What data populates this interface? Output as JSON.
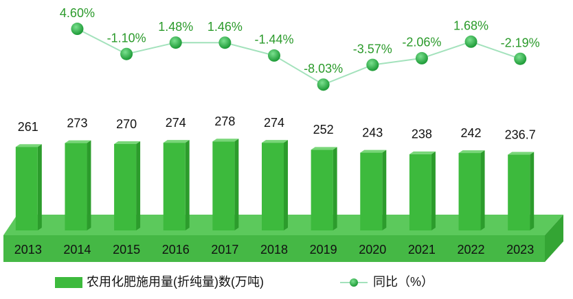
{
  "chart_data": {
    "type": "bar",
    "categories": [
      "2013",
      "2014",
      "2015",
      "2016",
      "2017",
      "2018",
      "2019",
      "2020",
      "2021",
      "2022",
      "2023"
    ],
    "series": [
      {
        "name": "农用化肥施用量(折纯量)数(万吨)",
        "type": "bar",
        "color": "#3dba3d",
        "values": [
          261,
          273,
          270,
          274,
          278,
          274,
          252,
          243,
          238,
          242,
          236.7
        ]
      },
      {
        "name": "同比（%）",
        "type": "line",
        "axis": "y2",
        "color": "#a3e2bc",
        "marker_color": "#1fa33a",
        "values": [
          null,
          4.6,
          -1.1,
          1.48,
          1.46,
          -1.44,
          -8.03,
          -3.57,
          -2.06,
          1.68,
          -2.19
        ],
        "value_labels": [
          null,
          "4.60%",
          "-1.10%",
          "1.48%",
          "1.46%",
          "-1.44%",
          "-8.03%",
          "-3.57%",
          "-2.06%",
          "1.68%",
          "-2.19%"
        ]
      }
    ],
    "ylim": [
      0,
      300
    ],
    "y2lim": [
      -10,
      6
    ],
    "legend": "bottom"
  }
}
